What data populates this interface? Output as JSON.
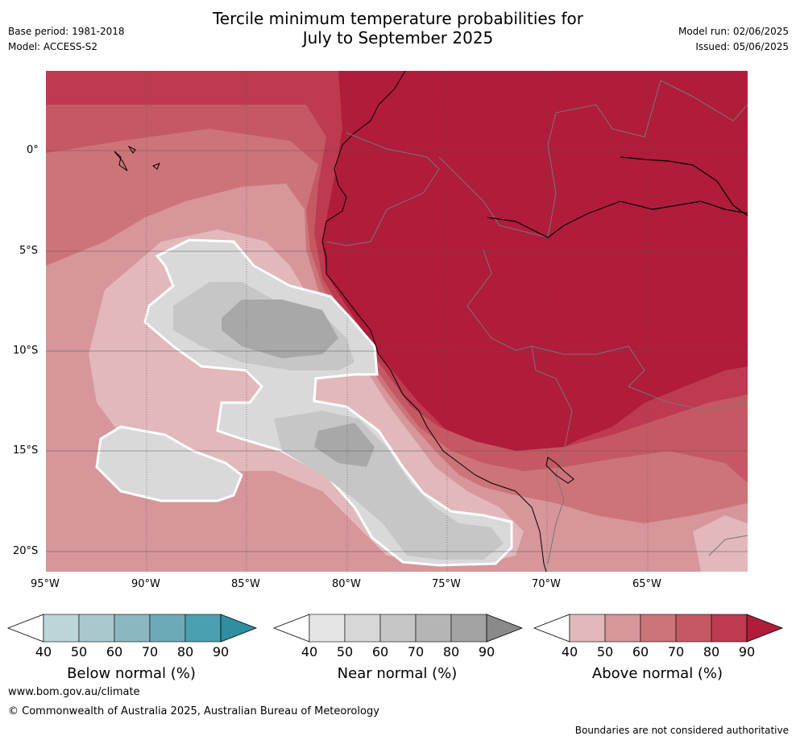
{
  "header": {
    "title_line1": "Tercile minimum temperature probabilities for",
    "title_line2": "July to September 2025",
    "base_period": "Base period: 1981-2018",
    "model": "Model: ACCESS-S2",
    "model_run": "Model run: 02/06/2025",
    "issued": "Issued: 05/06/2025"
  },
  "map": {
    "lat_labels": [
      "0°",
      "5°S",
      "10°S",
      "15°S",
      "20°S"
    ],
    "lon_labels": [
      "95°W",
      "90°W",
      "85°W",
      "80°W",
      "75°W",
      "70°W",
      "65°W"
    ],
    "lon_range": [
      -95,
      -60
    ],
    "lat_range": [
      -21,
      4
    ],
    "colors": {
      "above_90": "#b01c3a",
      "above_80": "#bd3a50",
      "above_70": "#c55963",
      "above_60": "#cd7479",
      "above_50": "#d6969a",
      "above_40": "#e2b8bb",
      "near_50": "#d9d9d9",
      "near_60": "#c6c6c6",
      "near_70": "#a8a8a8"
    }
  },
  "colorbars": [
    {
      "label": "Below normal (%)",
      "ticks": [
        "40",
        "50",
        "60",
        "70",
        "80",
        "90"
      ],
      "colors": [
        "#bcd5d9",
        "#a8c8ce",
        "#8bb7c1",
        "#6eaab5",
        "#4aa0b0",
        "#2e8fa0"
      ]
    },
    {
      "label": "Near normal (%)",
      "ticks": [
        "40",
        "50",
        "60",
        "70",
        "80",
        "90"
      ],
      "colors": [
        "#e5e5e5",
        "#d7d7d7",
        "#c6c6c6",
        "#b5b5b5",
        "#a3a3a3",
        "#8a8a8a"
      ]
    },
    {
      "label": "Above normal (%)",
      "ticks": [
        "40",
        "50",
        "60",
        "70",
        "80",
        "90"
      ],
      "colors": [
        "#e2b8bb",
        "#d6969a",
        "#cd7479",
        "#c55963",
        "#bd3a50",
        "#b01c3a"
      ]
    }
  ],
  "footer": {
    "website": "www.bom.gov.au/climate",
    "copyright": "© Commonwealth of Australia 2025, Australian Bureau of Meteorology",
    "disclaimer": "Boundaries are not considered authoritative"
  }
}
